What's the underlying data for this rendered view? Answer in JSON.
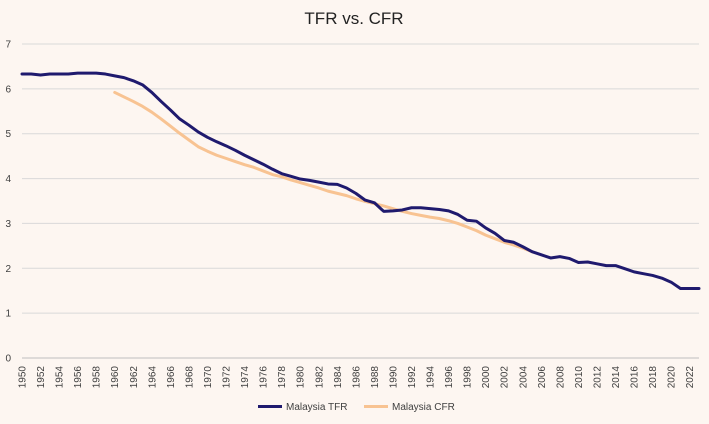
{
  "chart_data": {
    "type": "line",
    "title": "TFR vs. CFR",
    "xlabel": "",
    "ylabel": "",
    "xlim": [
      1950,
      2023
    ],
    "ylim": [
      0,
      7
    ],
    "yticks": [
      "0",
      "1",
      "2",
      "3",
      "4",
      "5",
      "6",
      "7"
    ],
    "xticks": [
      "1950",
      "1952",
      "1954",
      "1956",
      "1958",
      "1960",
      "1962",
      "1964",
      "1966",
      "1968",
      "1970",
      "1972",
      "1974",
      "1976",
      "1978",
      "1980",
      "1982",
      "1984",
      "1986",
      "1988",
      "1990",
      "1992",
      "1994",
      "1996",
      "1998",
      "2000",
      "2002",
      "2004",
      "2006",
      "2008",
      "2010",
      "2012",
      "2014",
      "2016",
      "2018",
      "2020",
      "2022"
    ],
    "grid": true,
    "legend_position": "bottom",
    "series": [
      {
        "name": "Malaysia TFR",
        "color": "#1f1a6e",
        "x": [
          1950,
          1951,
          1952,
          1953,
          1954,
          1955,
          1956,
          1957,
          1958,
          1959,
          1960,
          1961,
          1962,
          1963,
          1964,
          1965,
          1966,
          1967,
          1968,
          1969,
          1970,
          1971,
          1972,
          1973,
          1974,
          1975,
          1976,
          1977,
          1978,
          1979,
          1980,
          1981,
          1982,
          1983,
          1984,
          1985,
          1986,
          1987,
          1988,
          1989,
          1990,
          1991,
          1992,
          1993,
          1994,
          1995,
          1996,
          1997,
          1998,
          1999,
          2000,
          2001,
          2002,
          2003,
          2004,
          2005,
          2006,
          2007,
          2008,
          2009,
          2010,
          2011,
          2012,
          2013,
          2014,
          2015,
          2016,
          2017,
          2018,
          2019,
          2020,
          2021,
          2022,
          2023
        ],
        "values": [
          6.33,
          6.33,
          6.31,
          6.33,
          6.33,
          6.33,
          6.35,
          6.35,
          6.35,
          6.33,
          6.29,
          6.25,
          6.18,
          6.09,
          5.92,
          5.72,
          5.53,
          5.33,
          5.19,
          5.04,
          4.92,
          4.82,
          4.73,
          4.63,
          4.52,
          4.42,
          4.32,
          4.21,
          4.11,
          4.05,
          3.99,
          3.96,
          3.92,
          3.88,
          3.87,
          3.79,
          3.67,
          3.52,
          3.46,
          3.27,
          3.28,
          3.3,
          3.35,
          3.35,
          3.33,
          3.31,
          3.28,
          3.2,
          3.07,
          3.05,
          2.9,
          2.78,
          2.62,
          2.58,
          2.48,
          2.37,
          2.3,
          2.23,
          2.26,
          2.22,
          2.13,
          2.14,
          2.1,
          2.06,
          2.06,
          1.99,
          1.92,
          1.88,
          1.84,
          1.78,
          1.69,
          1.55,
          1.55,
          1.55
        ]
      },
      {
        "name": "Malaysia CFR",
        "color": "#f8c392",
        "x": [
          1960,
          1961,
          1962,
          1963,
          1964,
          1965,
          1966,
          1967,
          1968,
          1969,
          1970,
          1971,
          1972,
          1973,
          1974,
          1975,
          1976,
          1977,
          1978,
          1979,
          1980,
          1981,
          1982,
          1983,
          1984,
          1985,
          1986,
          1987,
          1988,
          1989,
          1990,
          1991,
          1992,
          1993,
          1994,
          1995,
          1996,
          1997,
          1998,
          1999,
          2000,
          2001,
          2002,
          2003,
          2004,
          2005
        ],
        "values": [
          5.92,
          5.82,
          5.72,
          5.61,
          5.48,
          5.33,
          5.17,
          5.01,
          4.86,
          4.71,
          4.61,
          4.52,
          4.45,
          4.38,
          4.31,
          4.25,
          4.17,
          4.09,
          4.04,
          3.97,
          3.91,
          3.85,
          3.79,
          3.72,
          3.67,
          3.62,
          3.55,
          3.49,
          3.44,
          3.39,
          3.33,
          3.27,
          3.22,
          3.18,
          3.14,
          3.11,
          3.06,
          3.0,
          2.92,
          2.84,
          2.74,
          2.66,
          2.58,
          2.52,
          2.45,
          2.37
        ]
      }
    ]
  }
}
